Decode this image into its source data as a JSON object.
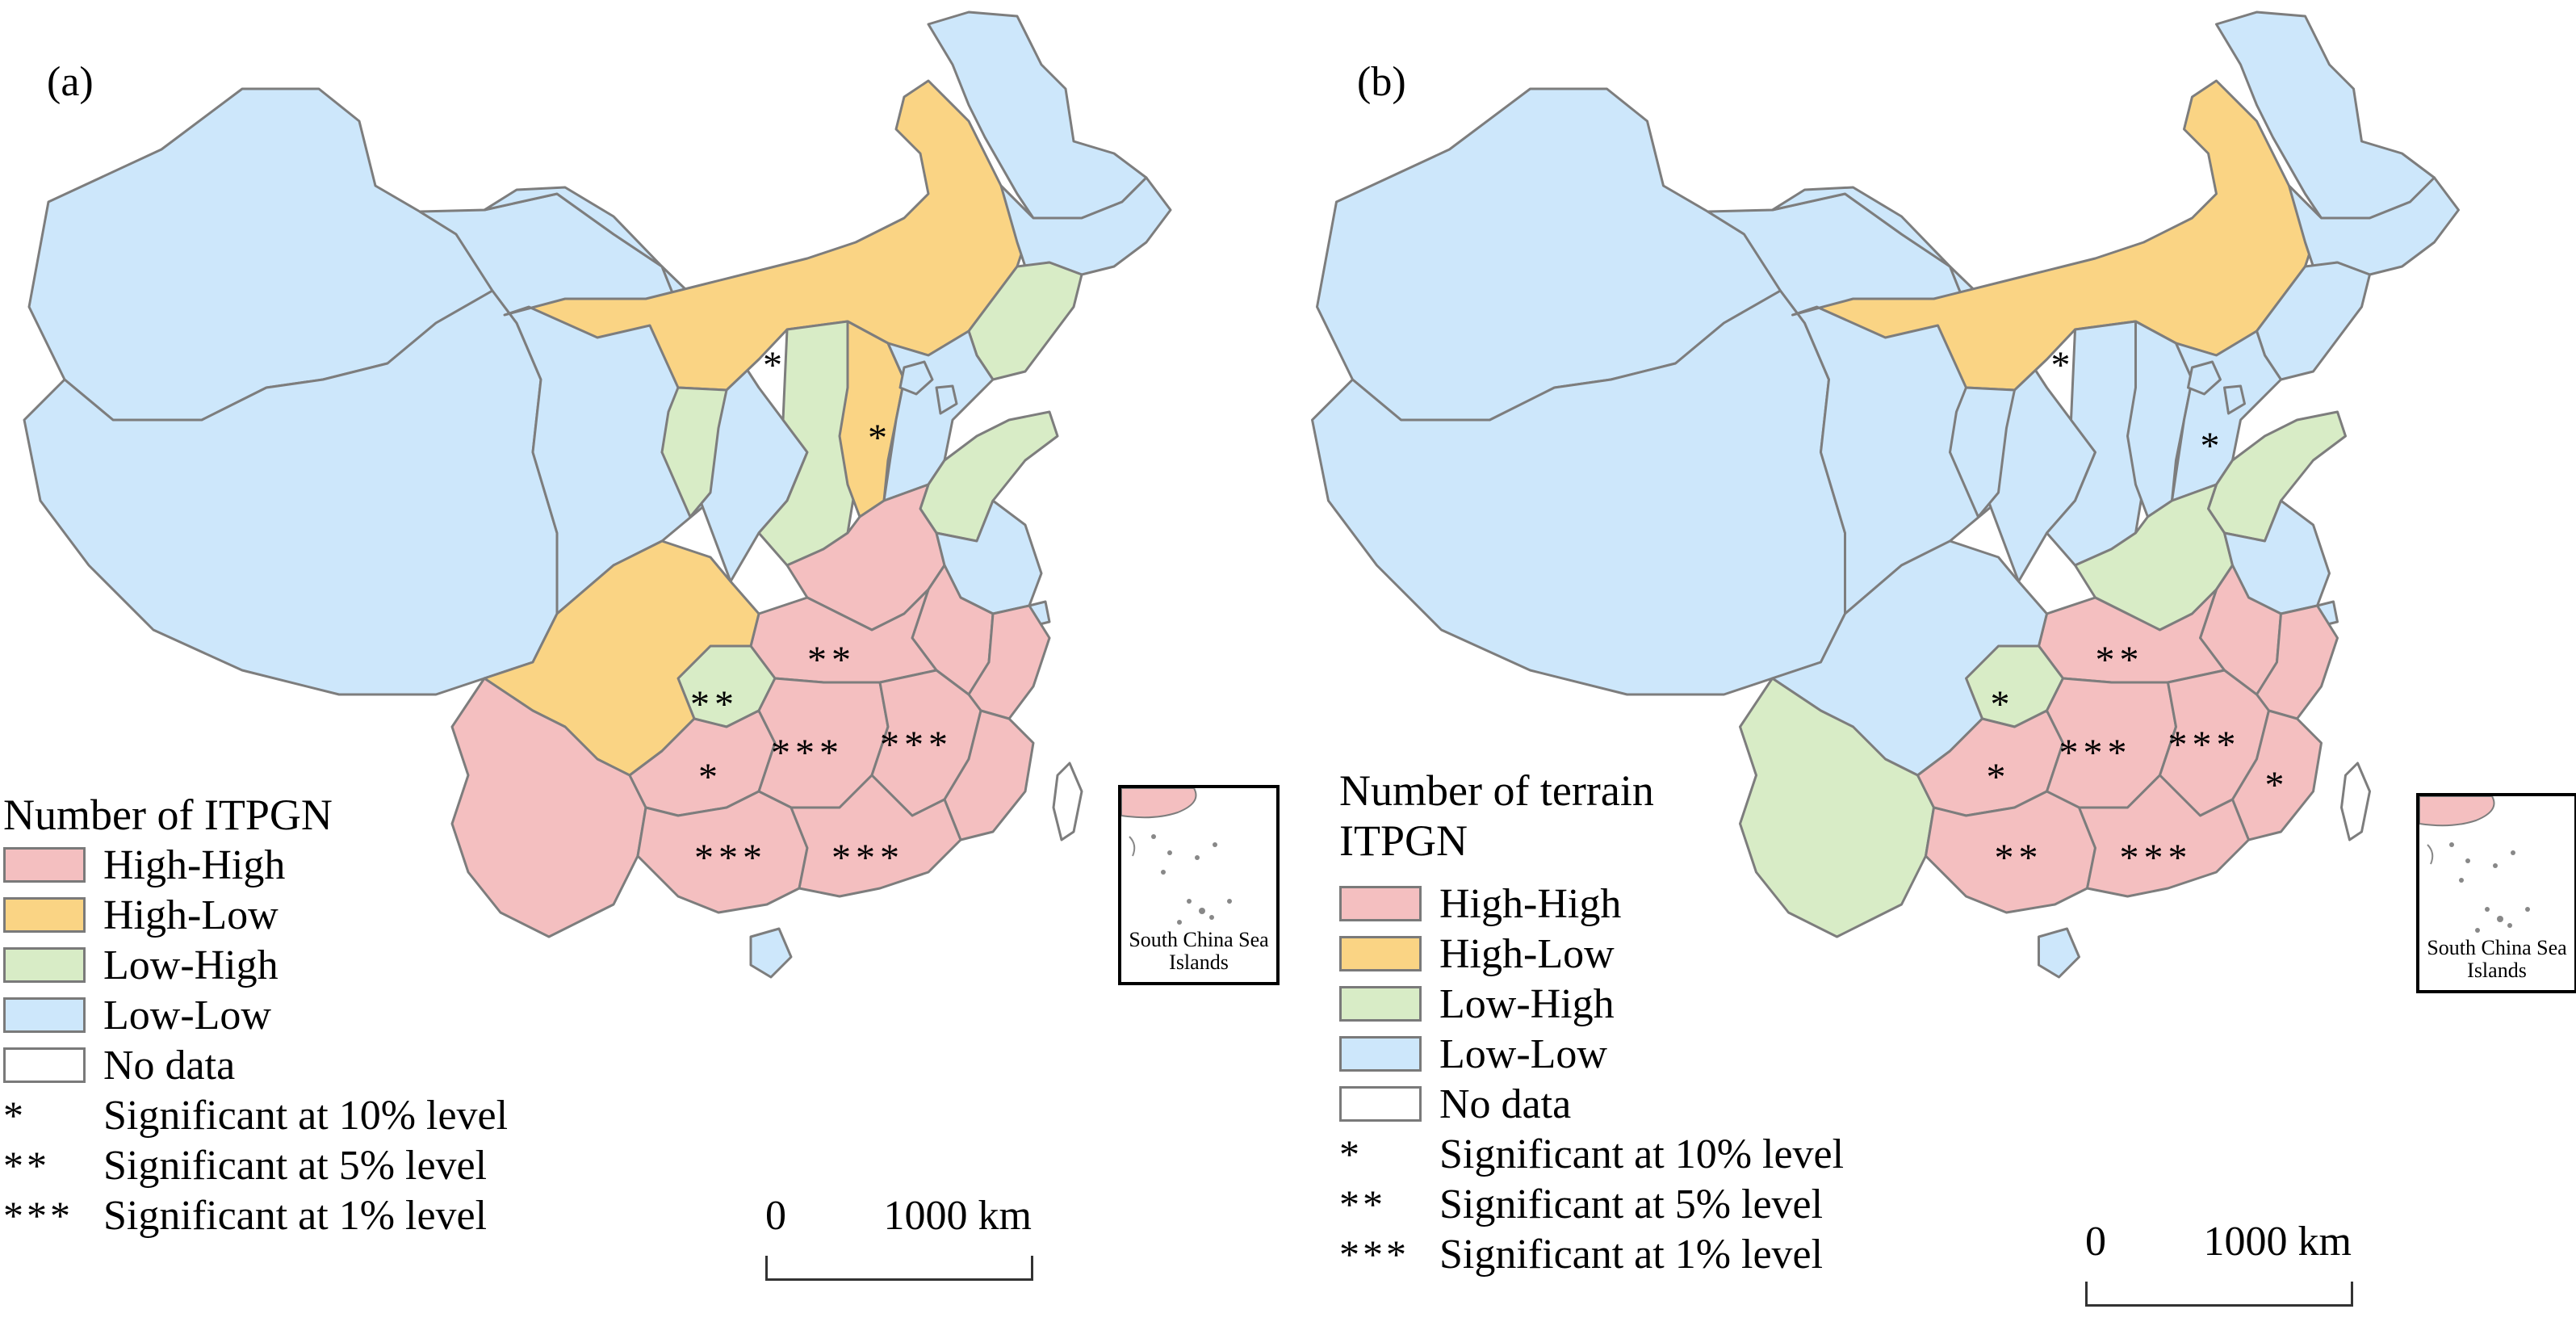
{
  "colors": {
    "high_high": "#f4bfc0",
    "high_low": "#fad484",
    "low_high": "#d8ecc6",
    "low_low": "#cde7fb",
    "no_data": "#ffffff",
    "border": "#7d7d7d"
  },
  "legend_categories": [
    "high_high",
    "high_low",
    "low_high",
    "low_low",
    "no_data"
  ],
  "panels": [
    {
      "label": "(a)",
      "legend": {
        "title": "Number of ITPGN",
        "items": [
          "High-High",
          "High-Low",
          "Low-High",
          "Low-Low",
          "No data"
        ],
        "significance": [
          {
            "mark": "*",
            "label": "Significant at 10% level"
          },
          {
            "mark": "**",
            "label": "Significant at 5% level"
          },
          {
            "mark": "***",
            "label": "Significant at 1% level"
          }
        ]
      },
      "scale": {
        "zero": "0",
        "max": "1000 km"
      },
      "inset_label": "South China Sea Islands",
      "regions": {
        "xinjiang": "low_low",
        "tibet": "low_low",
        "qinghai": "low_low",
        "gansu": "low_low",
        "inner_mongolia": "high_low",
        "heilongjiang": "low_low",
        "jilin": "low_low",
        "liaoning": "low_high",
        "ningxia": "low_high",
        "shaanxi": "low_high",
        "shanxi": "high_low",
        "hebei": "low_low",
        "beijing": "low_low",
        "tianjin": "low_low",
        "shandong": "low_high",
        "henan": "high_high",
        "jiangsu": "low_low",
        "anhui": "high_high",
        "shanghai": "low_low",
        "zhejiang": "high_high",
        "hubei": "high_high",
        "chongqing": "low_high",
        "sichuan": "high_low",
        "yunnan": "high_high",
        "guizhou": "high_high",
        "hunan": "high_high",
        "jiangxi": "high_high",
        "fujian": "high_high",
        "guangxi": "high_high",
        "guangdong": "high_high",
        "hainan": "low_low",
        "taiwan": "no_data"
      },
      "marks": [
        {
          "region": "inner_mongolia",
          "text": "*"
        },
        {
          "region": "shanxi",
          "text": "*"
        },
        {
          "region": "hubei",
          "text": "**"
        },
        {
          "region": "chongqing",
          "text": "**"
        },
        {
          "region": "hunan",
          "text": "***"
        },
        {
          "region": "jiangxi",
          "text": "***"
        },
        {
          "region": "guizhou",
          "text": "*"
        },
        {
          "region": "guangxi",
          "text": "***"
        },
        {
          "region": "guangdong",
          "text": "***"
        }
      ]
    },
    {
      "label": "(b)",
      "legend": {
        "title": "Number of terrain ITPGN",
        "items": [
          "High-High",
          "High-Low",
          "Low-High",
          "Low-Low",
          "No data"
        ],
        "significance": [
          {
            "mark": "*",
            "label": "Significant at 10% level"
          },
          {
            "mark": "**",
            "label": "Significant at 5% level"
          },
          {
            "mark": "***",
            "label": "Significant at 1% level"
          }
        ]
      },
      "scale": {
        "zero": "0",
        "max": "1000 km"
      },
      "inset_label": "South China Sea Islands",
      "regions": {
        "xinjiang": "low_low",
        "tibet": "low_low",
        "qinghai": "low_low",
        "gansu": "low_low",
        "inner_mongolia": "high_low",
        "heilongjiang": "low_low",
        "jilin": "low_low",
        "liaoning": "low_low",
        "ningxia": "low_low",
        "shaanxi": "low_low",
        "shanxi": "low_low",
        "hebei": "low_low",
        "beijing": "low_low",
        "tianjin": "low_low",
        "shandong": "low_high",
        "henan": "low_high",
        "jiangsu": "low_low",
        "anhui": "high_high",
        "shanghai": "low_low",
        "zhejiang": "high_high",
        "hubei": "high_high",
        "chongqing": "low_high",
        "sichuan": "low_low",
        "yunnan": "low_high",
        "guizhou": "high_high",
        "hunan": "high_high",
        "jiangxi": "high_high",
        "fujian": "high_high",
        "guangxi": "high_high",
        "guangdong": "high_high",
        "hainan": "low_low",
        "taiwan": "no_data"
      },
      "marks": [
        {
          "region": "inner_mongolia",
          "text": "*"
        },
        {
          "region": "hebei",
          "text": "*"
        },
        {
          "region": "hubei",
          "text": "**"
        },
        {
          "region": "chongqing",
          "text": "*"
        },
        {
          "region": "guizhou",
          "text": "*"
        },
        {
          "region": "hunan",
          "text": "***"
        },
        {
          "region": "jiangxi",
          "text": "***"
        },
        {
          "region": "fujian",
          "text": "*"
        },
        {
          "region": "guangxi",
          "text": "**"
        },
        {
          "region": "guangdong",
          "text": "***"
        }
      ]
    }
  ]
}
